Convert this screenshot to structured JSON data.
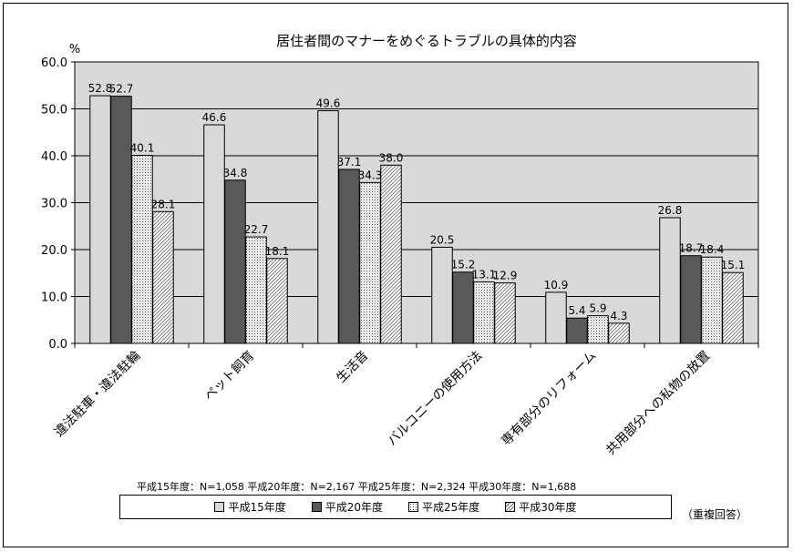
{
  "chart_data": {
    "type": "bar",
    "title": "居住者間のマナーをめぐるトラブルの具体的内容",
    "y_unit": "%",
    "ylim": [
      0,
      60
    ],
    "yticks": [
      "0.0",
      "10.0",
      "20.0",
      "30.0",
      "40.0",
      "50.0",
      "60.0"
    ],
    "grid": true,
    "legend_position": "bottom",
    "categories": [
      "違法駐車・違法駐輪",
      "ペット飼育",
      "生活音",
      "バルコニーの使用方法",
      "専有部分のリフォーム",
      "共用部分への私物の放置"
    ],
    "series": [
      {
        "name": "平成15年度",
        "values": [
          52.8,
          46.6,
          49.6,
          20.5,
          10.9,
          26.8
        ],
        "color": "#d9d9d9",
        "pattern": "solid"
      },
      {
        "name": "平成20年度",
        "values": [
          52.7,
          34.8,
          37.1,
          15.2,
          5.4,
          18.7
        ],
        "color": "#595959",
        "pattern": "solid"
      },
      {
        "name": "平成25年度",
        "values": [
          40.1,
          22.7,
          34.3,
          13.1,
          5.9,
          18.4
        ],
        "color": "#ffffff",
        "pattern": "dots"
      },
      {
        "name": "平成30年度",
        "values": [
          28.1,
          18.1,
          38.0,
          12.9,
          4.3,
          15.1
        ],
        "color": "#ffffff",
        "pattern": "hatch"
      }
    ],
    "sample_note": "平成15年度：N=1,058  平成20年度：N=2,167  平成25年度：N=2,324  平成30年度：N=1,688",
    "note": "（重複回答）",
    "plot_background": "#d9d9d9"
  }
}
